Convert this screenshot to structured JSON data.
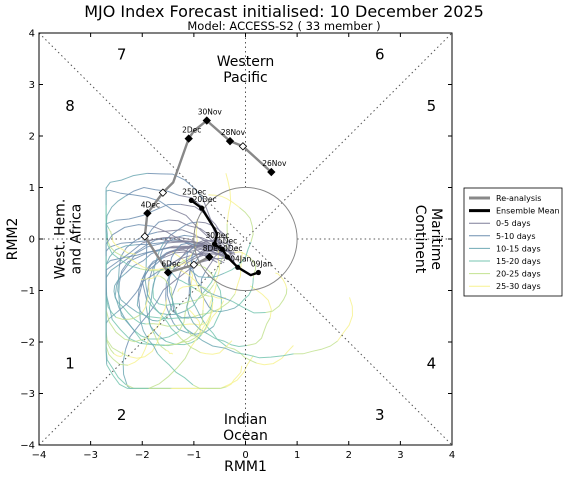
{
  "title": "MJO Index Forecast initialised:  10  December 2025",
  "subtitle": "Model: ACCESS-S2 ( 33 member )",
  "chart_data": {
    "type": "line",
    "xlabel": "RMM1",
    "ylabel": "RMM2",
    "xlim": [
      -4,
      4
    ],
    "ylim": [
      -4,
      4
    ],
    "xticks": [
      "−4",
      "−3",
      "−2",
      "−1",
      "0",
      "1",
      "2",
      "3",
      "4"
    ],
    "yticks": [
      "−4",
      "−3",
      "−2",
      "−1",
      "0",
      "1",
      "2",
      "3",
      "4"
    ],
    "grid": false,
    "amplitude_circle_radius": 1,
    "legend_position": "right",
    "phases": [
      {
        "label": "1",
        "x": -3.4,
        "y": -2.4
      },
      {
        "label": "2",
        "x": -2.4,
        "y": -3.4
      },
      {
        "label": "3",
        "x": 2.6,
        "y": -3.4
      },
      {
        "label": "4",
        "x": 3.6,
        "y": -2.4
      },
      {
        "label": "5",
        "x": 3.6,
        "y": 2.6
      },
      {
        "label": "6",
        "x": 2.6,
        "y": 3.6
      },
      {
        "label": "7",
        "x": -2.4,
        "y": 3.6
      },
      {
        "label": "8",
        "x": -3.4,
        "y": 2.6
      }
    ],
    "regions": [
      {
        "lines": [
          "Western",
          "Pacific"
        ],
        "x": 0,
        "y": 3.3,
        "rotate": 0
      },
      {
        "lines": [
          "Indian",
          "Ocean"
        ],
        "x": 0,
        "y": -3.65,
        "rotate": 0
      },
      {
        "lines": [
          "West. Hem.",
          "and Africa"
        ],
        "x": -3.45,
        "y": 0,
        "rotate": -90
      },
      {
        "lines": [
          "Maritime",
          "Continent"
        ],
        "x": 3.55,
        "y": 0,
        "rotate": 90
      }
    ],
    "legend": [
      {
        "label": "Re-analysis",
        "color": "#888888",
        "width": 3
      },
      {
        "label": "Ensemble Mean",
        "color": "#000000",
        "width": 3
      },
      {
        "label": "0-5 days",
        "color": "#7f7f99",
        "width": 1
      },
      {
        "label": "5-10 days",
        "color": "#6f8fb0",
        "width": 1
      },
      {
        "label": "10-15 days",
        "color": "#6fa9b4",
        "width": 1
      },
      {
        "label": "15-20 days",
        "color": "#77c6b0",
        "width": 1
      },
      {
        "label": "20-25 days",
        "color": "#c2e290",
        "width": 1
      },
      {
        "label": "25-30 days",
        "color": "#f7f290",
        "width": 1
      }
    ],
    "reanalysis": {
      "points": [
        {
          "x": 0.5,
          "y": 1.3,
          "label": "26Nov",
          "marker": "diamond"
        },
        {
          "x": -0.05,
          "y": 1.8,
          "label": "",
          "marker": "open-diamond"
        },
        {
          "x": -0.3,
          "y": 1.9,
          "label": "28Nov",
          "marker": "diamond"
        },
        {
          "x": -0.75,
          "y": 2.3,
          "label": "30Nov",
          "marker": "diamond"
        },
        {
          "x": -1.0,
          "y": 2.1,
          "label": "",
          "marker": "none"
        },
        {
          "x": -1.1,
          "y": 1.95,
          "label": "2Dec",
          "marker": "diamond"
        },
        {
          "x": -1.4,
          "y": 1.1,
          "label": "",
          "marker": "none"
        },
        {
          "x": -1.6,
          "y": 0.9,
          "label": "",
          "marker": "open-diamond"
        },
        {
          "x": -1.9,
          "y": 0.5,
          "label": "4Dec",
          "marker": "diamond"
        },
        {
          "x": -1.95,
          "y": 0.05,
          "label": "",
          "marker": "open-diamond"
        },
        {
          "x": -1.5,
          "y": -0.65,
          "label": "6Dec",
          "marker": "diamond"
        },
        {
          "x": -1.0,
          "y": -0.5,
          "label": "",
          "marker": "open-diamond"
        },
        {
          "x": -0.7,
          "y": -0.35,
          "label": "8Dec",
          "marker": "diamond"
        }
      ]
    },
    "ensemble_mean": {
      "points": [
        {
          "x": -1.05,
          "y": 0.75,
          "label": "25Dec",
          "marker": "dot"
        },
        {
          "x": -0.85,
          "y": 0.6,
          "label": "20Dec",
          "marker": "dot"
        },
        {
          "x": -0.6,
          "y": 0.2,
          "label": "",
          "marker": "none"
        },
        {
          "x": -0.55,
          "y": 0.1,
          "label": "",
          "marker": "none"
        },
        {
          "x": -0.6,
          "y": -0.1,
          "label": "30Dec",
          "marker": "dot"
        },
        {
          "x": -0.45,
          "y": -0.2,
          "label": "15Dec",
          "marker": "dot"
        },
        {
          "x": -0.35,
          "y": -0.35,
          "label": "10Dec",
          "marker": "dot"
        },
        {
          "x": -0.15,
          "y": -0.55,
          "label": "04Jan",
          "marker": "dot"
        },
        {
          "x": 0.1,
          "y": -0.7,
          "label": "",
          "marker": "none"
        },
        {
          "x": 0.25,
          "y": -0.65,
          "label": "09Jan",
          "marker": "dot"
        }
      ]
    },
    "members_note": "33 ensemble member trajectories drawn as thin colored lines"
  }
}
